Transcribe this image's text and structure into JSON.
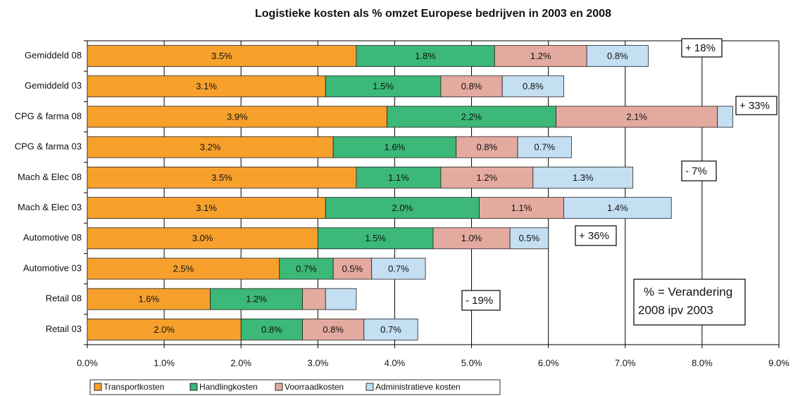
{
  "chart_data": {
    "type": "stacked-bar-horizontal",
    "title": "Logistieke kosten als % omzet Europese bedrijven in 2003 en 2008",
    "categories": [
      "Gemiddeld 08",
      "Gemiddeld 03",
      "CPG & farma 08",
      "CPG & farma 03",
      "Mach & Elec 08",
      "Mach & Elec 03",
      "Automotive 08",
      "Automotive 03",
      "Retail 08",
      "Retail 03"
    ],
    "series": [
      {
        "name": "Transportkosten",
        "color": "#f7a12c",
        "values": [
          3.5,
          3.1,
          3.9,
          3.2,
          3.5,
          3.1,
          3.0,
          2.5,
          1.6,
          2.0
        ],
        "value_labels": [
          "3.5%",
          "3.1%",
          "3.9%",
          "3.2%",
          "3.5%",
          "3.1%",
          "3.0%",
          "2.5%",
          "1.6%",
          "2.0%"
        ]
      },
      {
        "name": "Handlingkosten",
        "color": "#3cb878",
        "values": [
          1.8,
          1.5,
          2.2,
          1.6,
          1.1,
          2.0,
          1.5,
          0.7,
          1.2,
          0.8
        ],
        "value_labels": [
          "1.8%",
          "1.5%",
          "2.2%",
          "1.6%",
          "1.1%",
          "2.0%",
          "1.5%",
          "0.7%",
          "1.2%",
          "0.8%"
        ]
      },
      {
        "name": "Voorraadkosten",
        "color": "#e3aaa0",
        "values": [
          1.2,
          0.8,
          2.1,
          0.8,
          1.2,
          1.1,
          1.0,
          0.5,
          0.3,
          0.8
        ],
        "value_labels": [
          "1.2%",
          "0.8%",
          "2.1%",
          "0.8%",
          "1.2%",
          "1.1%",
          "1.0%",
          "0.5%",
          null,
          "0.8%"
        ]
      },
      {
        "name": "Administratieve kosten",
        "color": "#c4def2",
        "values": [
          0.8,
          0.8,
          0.2,
          0.7,
          1.3,
          1.4,
          0.5,
          0.7,
          0.4,
          0.7
        ],
        "value_labels": [
          "0.8%",
          "0.8%",
          null,
          "0.7%",
          "1.3%",
          "1.4%",
          "0.5%",
          "0.7%",
          null,
          "0.7%"
        ]
      }
    ],
    "xlim": [
      0,
      9
    ],
    "xticks": [
      {
        "value": 0,
        "label": "0.0%"
      },
      {
        "value": 1,
        "label": "1.0%"
      },
      {
        "value": 2,
        "label": "2.0%"
      },
      {
        "value": 3,
        "label": "3.0%"
      },
      {
        "value": 4,
        "label": "4.0%"
      },
      {
        "value": 5,
        "label": "5.0%"
      },
      {
        "value": 6,
        "label": "6.0%"
      },
      {
        "value": 7,
        "label": "7.0%"
      },
      {
        "value": 8,
        "label": "8.0%"
      },
      {
        "value": 9,
        "label": "9.0%"
      }
    ],
    "grid": true,
    "annotations": [
      "+ 18%",
      "+ 33%",
      "- 7%",
      "+ 36%",
      "- 19%"
    ],
    "note": [
      "% = Verandering",
      "2008 ipv 2003"
    ]
  }
}
